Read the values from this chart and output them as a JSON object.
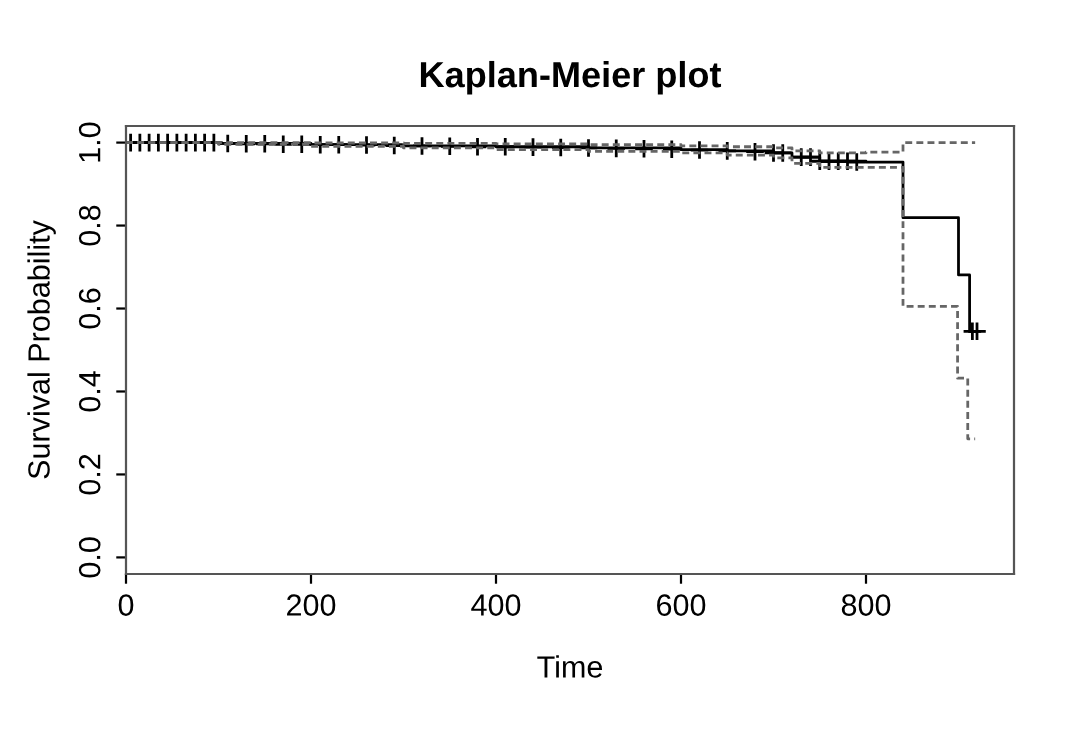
{
  "chart_data": {
    "type": "step",
    "title": "Kaplan-Meier plot",
    "xlabel": "Time",
    "ylabel": "Survival Probability",
    "xlim": [
      0,
      960
    ],
    "ylim": [
      -0.04,
      1.04
    ],
    "xticks": [
      0,
      200,
      400,
      600,
      800
    ],
    "yticks": [
      {
        "value": 0,
        "label": "0.0"
      },
      {
        "value": 0.2,
        "label": "0.2"
      },
      {
        "value": 0.4,
        "label": "0.4"
      },
      {
        "value": 0.6,
        "label": "0.6"
      },
      {
        "value": 0.8,
        "label": "0.8"
      },
      {
        "value": 1,
        "label": "1.0"
      }
    ],
    "grid": false,
    "legend": false,
    "series": [
      {
        "color": "#000000",
        "line_style": "solid",
        "x": [
          0,
          100,
          200,
          300,
          400,
          500,
          600,
          650,
          700,
          720,
          750,
          800,
          840,
          900,
          912,
          918
        ],
        "values": [
          1.0,
          0.998,
          0.995,
          0.992,
          0.99,
          0.987,
          0.983,
          0.98,
          0.975,
          0.965,
          0.955,
          0.953,
          0.819,
          0.681,
          0.545,
          0.545
        ]
      },
      {
        "color": "#666666",
        "line_style": "dashed",
        "x": [
          0,
          100,
          200,
          300,
          400,
          500,
          600,
          650,
          700,
          720,
          750,
          800,
          840,
          918
        ],
        "values": [
          1.0,
          1.0,
          0.999,
          0.998,
          0.997,
          0.995,
          0.992,
          0.99,
          0.987,
          0.98,
          0.975,
          0.977,
          1.0,
          1.0
        ]
      },
      {
        "color": "#666666",
        "line_style": "dashed",
        "x": [
          0,
          100,
          200,
          300,
          400,
          500,
          600,
          650,
          700,
          720,
          750,
          800,
          840,
          899,
          910,
          918
        ],
        "values": [
          1.0,
          0.996,
          0.991,
          0.987,
          0.983,
          0.979,
          0.975,
          0.97,
          0.963,
          0.95,
          0.94,
          0.94,
          0.605,
          0.432,
          0.286,
          0.286
        ]
      },
      {
        "type": "scatter",
        "color": "#000000",
        "marker": "cross",
        "x": [
          5,
          15,
          25,
          35,
          45,
          55,
          65,
          75,
          85,
          95,
          110,
          130,
          150,
          170,
          190,
          210,
          230,
          260,
          290,
          320,
          350,
          380,
          410,
          440,
          470,
          500,
          530,
          560,
          590,
          620,
          650,
          680,
          700,
          710,
          730,
          740,
          750,
          760,
          770,
          780,
          790,
          915,
          920
        ],
        "values": [
          1.0,
          1.0,
          1.0,
          1.0,
          1.0,
          1.0,
          1.0,
          1.0,
          1.0,
          1.0,
          0.998,
          0.997,
          0.997,
          0.996,
          0.996,
          0.995,
          0.995,
          0.994,
          0.993,
          0.992,
          0.991,
          0.99,
          0.99,
          0.989,
          0.988,
          0.987,
          0.986,
          0.985,
          0.984,
          0.982,
          0.98,
          0.978,
          0.975,
          0.975,
          0.965,
          0.965,
          0.955,
          0.955,
          0.955,
          0.955,
          0.953,
          0.545,
          0.545
        ]
      }
    ]
  }
}
